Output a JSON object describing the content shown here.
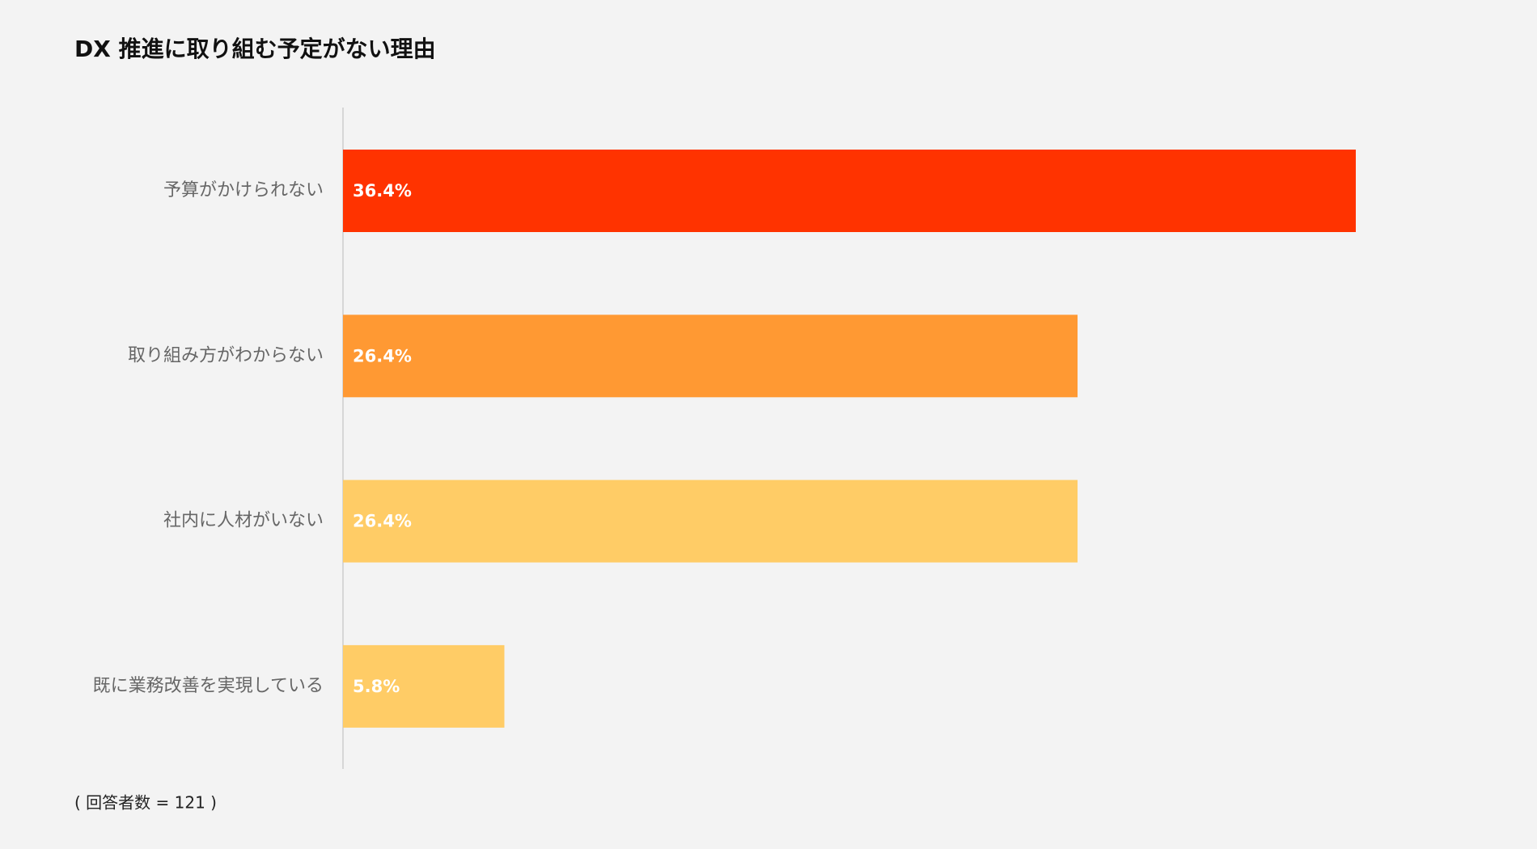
{
  "chart_data": {
    "type": "bar",
    "orientation": "horizontal",
    "title": "DX 推進に取り組む予定がない理由",
    "categories": [
      "予算がかけられない",
      "取り組み方がわからない",
      "社内に人材がいない",
      "既に業務改善を実現している"
    ],
    "values": [
      36.4,
      26.4,
      26.4,
      5.8
    ],
    "value_labels": [
      "36.4%",
      "26.4%",
      "26.4%",
      "5.8%"
    ],
    "colors": [
      "#ff3300",
      "#ff9933",
      "#ffcc66",
      "#ffcc66"
    ],
    "note": "( 回答者数 = 121 )"
  }
}
